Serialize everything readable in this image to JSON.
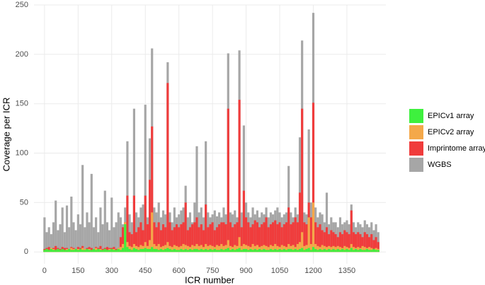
{
  "chart_data": {
    "type": "bar",
    "xlabel": "ICR number",
    "ylabel": "Coverage per ICR",
    "xlim": [
      -47,
      1524
    ],
    "ylim": [
      -12,
      250
    ],
    "xticks": [
      0,
      150,
      300,
      450,
      600,
      750,
      900,
      1050,
      1200,
      1350
    ],
    "yticks": [
      0,
      50,
      100,
      150,
      200,
      250
    ],
    "grid": true,
    "legend": "right",
    "x": [
      0,
      10,
      20,
      30,
      40,
      50,
      60,
      70,
      80,
      90,
      100,
      110,
      120,
      130,
      140,
      150,
      160,
      170,
      180,
      190,
      200,
      210,
      220,
      230,
      240,
      250,
      260,
      270,
      280,
      290,
      300,
      310,
      320,
      330,
      340,
      350,
      360,
      370,
      380,
      390,
      400,
      410,
      420,
      430,
      440,
      450,
      460,
      470,
      480,
      490,
      500,
      510,
      520,
      530,
      540,
      550,
      560,
      570,
      580,
      590,
      600,
      610,
      620,
      630,
      640,
      650,
      660,
      670,
      680,
      690,
      700,
      710,
      720,
      730,
      740,
      750,
      760,
      770,
      780,
      790,
      800,
      810,
      820,
      830,
      840,
      850,
      860,
      870,
      880,
      890,
      900,
      910,
      920,
      930,
      940,
      950,
      960,
      970,
      980,
      990,
      1000,
      1010,
      1020,
      1030,
      1040,
      1050,
      1060,
      1070,
      1080,
      1090,
      1100,
      1110,
      1120,
      1130,
      1140,
      1150,
      1160,
      1170,
      1180,
      1190,
      1200,
      1210,
      1220,
      1230,
      1240,
      1250,
      1260,
      1270,
      1280,
      1290,
      1300,
      1310,
      1320,
      1330,
      1340,
      1350,
      1360,
      1370,
      1380,
      1390,
      1400,
      1410,
      1420,
      1430,
      1440,
      1450,
      1460,
      1470,
      1480,
      1490
    ],
    "series": [
      {
        "name": "EPICv1 array",
        "color": "#3ef03e",
        "values": [
          2,
          3,
          2,
          3,
          2,
          2,
          3,
          2,
          3,
          2,
          2,
          3,
          2,
          2,
          3,
          2,
          3,
          2,
          2,
          3,
          2,
          2,
          3,
          2,
          3,
          2,
          2,
          3,
          2,
          2,
          3,
          2,
          2,
          3,
          2,
          4,
          28,
          5,
          3,
          2,
          4,
          3,
          2,
          3,
          3,
          4,
          3,
          3,
          5,
          3,
          3,
          2,
          3,
          2,
          3,
          4,
          3,
          2,
          3,
          2,
          2,
          3,
          2,
          3,
          2,
          3,
          2,
          3,
          3,
          2,
          3,
          2,
          3,
          2,
          3,
          2,
          3,
          2,
          2,
          3,
          2,
          3,
          4,
          2,
          3,
          2,
          3,
          4,
          2,
          3,
          3,
          2,
          3,
          2,
          3,
          2,
          3,
          2,
          3,
          2,
          2,
          3,
          2,
          3,
          2,
          3,
          2,
          3,
          2,
          3,
          3,
          2,
          3,
          2,
          3,
          4,
          2,
          3,
          4,
          2,
          5,
          3,
          2,
          3,
          2,
          3,
          2,
          3,
          2,
          3,
          2,
          3,
          2,
          3,
          2,
          3,
          2,
          4,
          2,
          3,
          2,
          3,
          2,
          2,
          3,
          2,
          2,
          3,
          2,
          2
        ]
      },
      {
        "name": "EPICv2 array",
        "color": "#f4a84a",
        "values": [
          2,
          3,
          2,
          4,
          3,
          2,
          3,
          2,
          3,
          2,
          3,
          2,
          4,
          3,
          2,
          3,
          2,
          4,
          3,
          2,
          3,
          2,
          3,
          4,
          2,
          3,
          2,
          3,
          2,
          3,
          2,
          3,
          2,
          4,
          5,
          8,
          30,
          10,
          6,
          5,
          8,
          6,
          5,
          7,
          6,
          10,
          6,
          12,
          40,
          8,
          6,
          8,
          5,
          6,
          7,
          10,
          6,
          5,
          7,
          6,
          5,
          6,
          8,
          7,
          6,
          5,
          7,
          6,
          8,
          6,
          7,
          5,
          8,
          6,
          7,
          6,
          5,
          7,
          6,
          8,
          6,
          7,
          12,
          6,
          5,
          7,
          6,
          15,
          6,
          8,
          7,
          6,
          5,
          8,
          6,
          7,
          5,
          6,
          7,
          6,
          5,
          7,
          6,
          8,
          6,
          5,
          7,
          6,
          5,
          8,
          6,
          7,
          5,
          8,
          10,
          20,
          6,
          7,
          35,
          8,
          50,
          8,
          6,
          5,
          7,
          6,
          5,
          6,
          5,
          6,
          5,
          6,
          5,
          4,
          6,
          5,
          4,
          8,
          5,
          4,
          5,
          4,
          6,
          5,
          4,
          5,
          4,
          3,
          4,
          3
        ]
      },
      {
        "name": "Imprintome array",
        "color": "#f03c3c",
        "values": [
          3,
          4,
          5,
          3,
          4,
          6,
          4,
          3,
          5,
          4,
          4,
          3,
          5,
          4,
          3,
          5,
          4,
          6,
          3,
          4,
          5,
          4,
          3,
          5,
          4,
          6,
          3,
          4,
          5,
          4,
          4,
          5,
          3,
          4,
          15,
          25,
          30,
          57,
          20,
          18,
          57,
          20,
          25,
          30,
          22,
          57,
          28,
          73,
          127,
          30,
          25,
          30,
          22,
          28,
          25,
          171,
          30,
          22,
          25,
          28,
          25,
          28,
          30,
          50,
          22,
          25,
          28,
          30,
          35,
          25,
          28,
          22,
          48,
          25,
          28,
          30,
          22,
          25,
          28,
          30,
          30,
          28,
          145,
          30,
          25,
          28,
          30,
          154,
          25,
          62,
          35,
          30,
          25,
          28,
          32,
          30,
          25,
          28,
          30,
          35,
          25,
          28,
          30,
          32,
          28,
          30,
          25,
          28,
          30,
          45,
          28,
          30,
          35,
          30,
          60,
          145,
          30,
          28,
          50,
          35,
          151,
          30,
          25,
          28,
          22,
          20,
          25,
          18,
          22,
          20,
          18,
          15,
          20,
          18,
          22,
          20,
          18,
          42,
          20,
          18,
          20,
          18,
          15,
          20,
          18,
          15,
          18,
          12,
          15,
          10
        ]
      },
      {
        "name": "WGBS",
        "color": "#a6a6a6",
        "values": [
          35,
          20,
          25,
          18,
          30,
          52,
          22,
          28,
          45,
          20,
          47,
          25,
          56,
          30,
          22,
          38,
          28,
          88,
          25,
          40,
          30,
          79,
          25,
          35,
          20,
          45,
          28,
          62,
          30,
          22,
          55,
          25,
          30,
          40,
          35,
          28,
          45,
          112,
          38,
          30,
          145,
          40,
          35,
          45,
          48,
          149,
          35,
          115,
          206,
          45,
          40,
          50,
          35,
          42,
          38,
          192,
          40,
          30,
          45,
          35,
          38,
          42,
          45,
          67,
          35,
          40,
          30,
          50,
          107,
          40,
          45,
          35,
          112,
          40,
          35,
          38,
          42,
          36,
          40,
          35,
          45,
          38,
          201,
          40,
          38,
          42,
          35,
          204,
          40,
          128,
          50,
          40,
          35,
          45,
          38,
          42,
          35,
          40,
          38,
          45,
          35,
          40,
          38,
          42,
          45,
          40,
          35,
          38,
          40,
          87,
          40,
          35,
          45,
          38,
          116,
          214,
          40,
          38,
          124,
          50,
          242,
          45,
          35,
          40,
          38,
          30,
          60,
          28,
          35,
          30,
          30,
          25,
          35,
          28,
          30,
          32,
          28,
          48,
          30,
          25,
          30,
          28,
          25,
          32,
          28,
          25,
          30,
          22,
          28,
          20
        ]
      }
    ]
  }
}
